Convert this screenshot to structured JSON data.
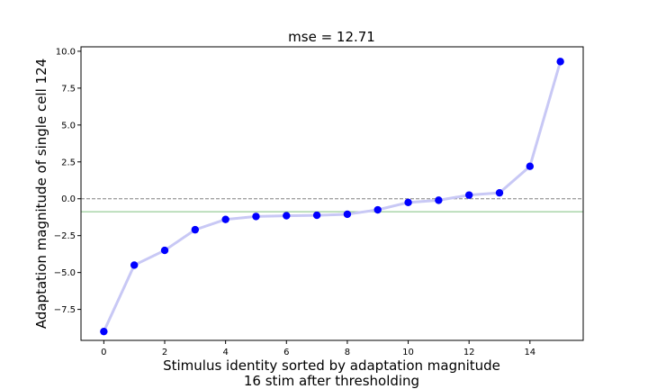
{
  "chart_data": {
    "type": "line",
    "title": "mse = 12.71",
    "xlabel_lines": [
      "Stimulus identity sorted by adaptation magnitude",
      "16 stim after thresholding"
    ],
    "ylabel": "Adaptation magnitude of single cell 124",
    "xlim": [
      -0.75,
      15.75
    ],
    "ylim": [
      -9.6,
      10.3
    ],
    "xticks": [
      0,
      2,
      4,
      6,
      8,
      10,
      12,
      14
    ],
    "xtick_labels": [
      "0",
      "2",
      "4",
      "6",
      "8",
      "10",
      "12",
      "14"
    ],
    "yticks": [
      -7.5,
      -5.0,
      -2.5,
      0.0,
      2.5,
      5.0,
      7.5,
      10.0
    ],
    "ytick_labels": [
      "−7.5",
      "−5.0",
      "−2.5",
      "0.0",
      "2.5",
      "5.0",
      "7.5",
      "10.0"
    ],
    "grid": false,
    "series": [
      {
        "x": [
          0,
          1,
          2,
          3,
          4,
          5,
          6,
          7,
          8,
          9,
          10,
          11,
          12,
          13,
          14,
          15
        ],
        "values": [
          -9.0,
          -4.5,
          -3.5,
          -2.1,
          -1.4,
          -1.2,
          -1.15,
          -1.12,
          -1.05,
          -0.75,
          -0.25,
          -0.1,
          0.25,
          0.4,
          2.2,
          9.3
        ],
        "line_color": "#c8c8f5",
        "marker_color": "#0000ff"
      }
    ],
    "reference_lines": [
      {
        "y": 0.0,
        "style": "dashed",
        "color": "#808080"
      },
      {
        "y": -0.88,
        "style": "solid",
        "color": "#7fbf7f"
      }
    ]
  }
}
